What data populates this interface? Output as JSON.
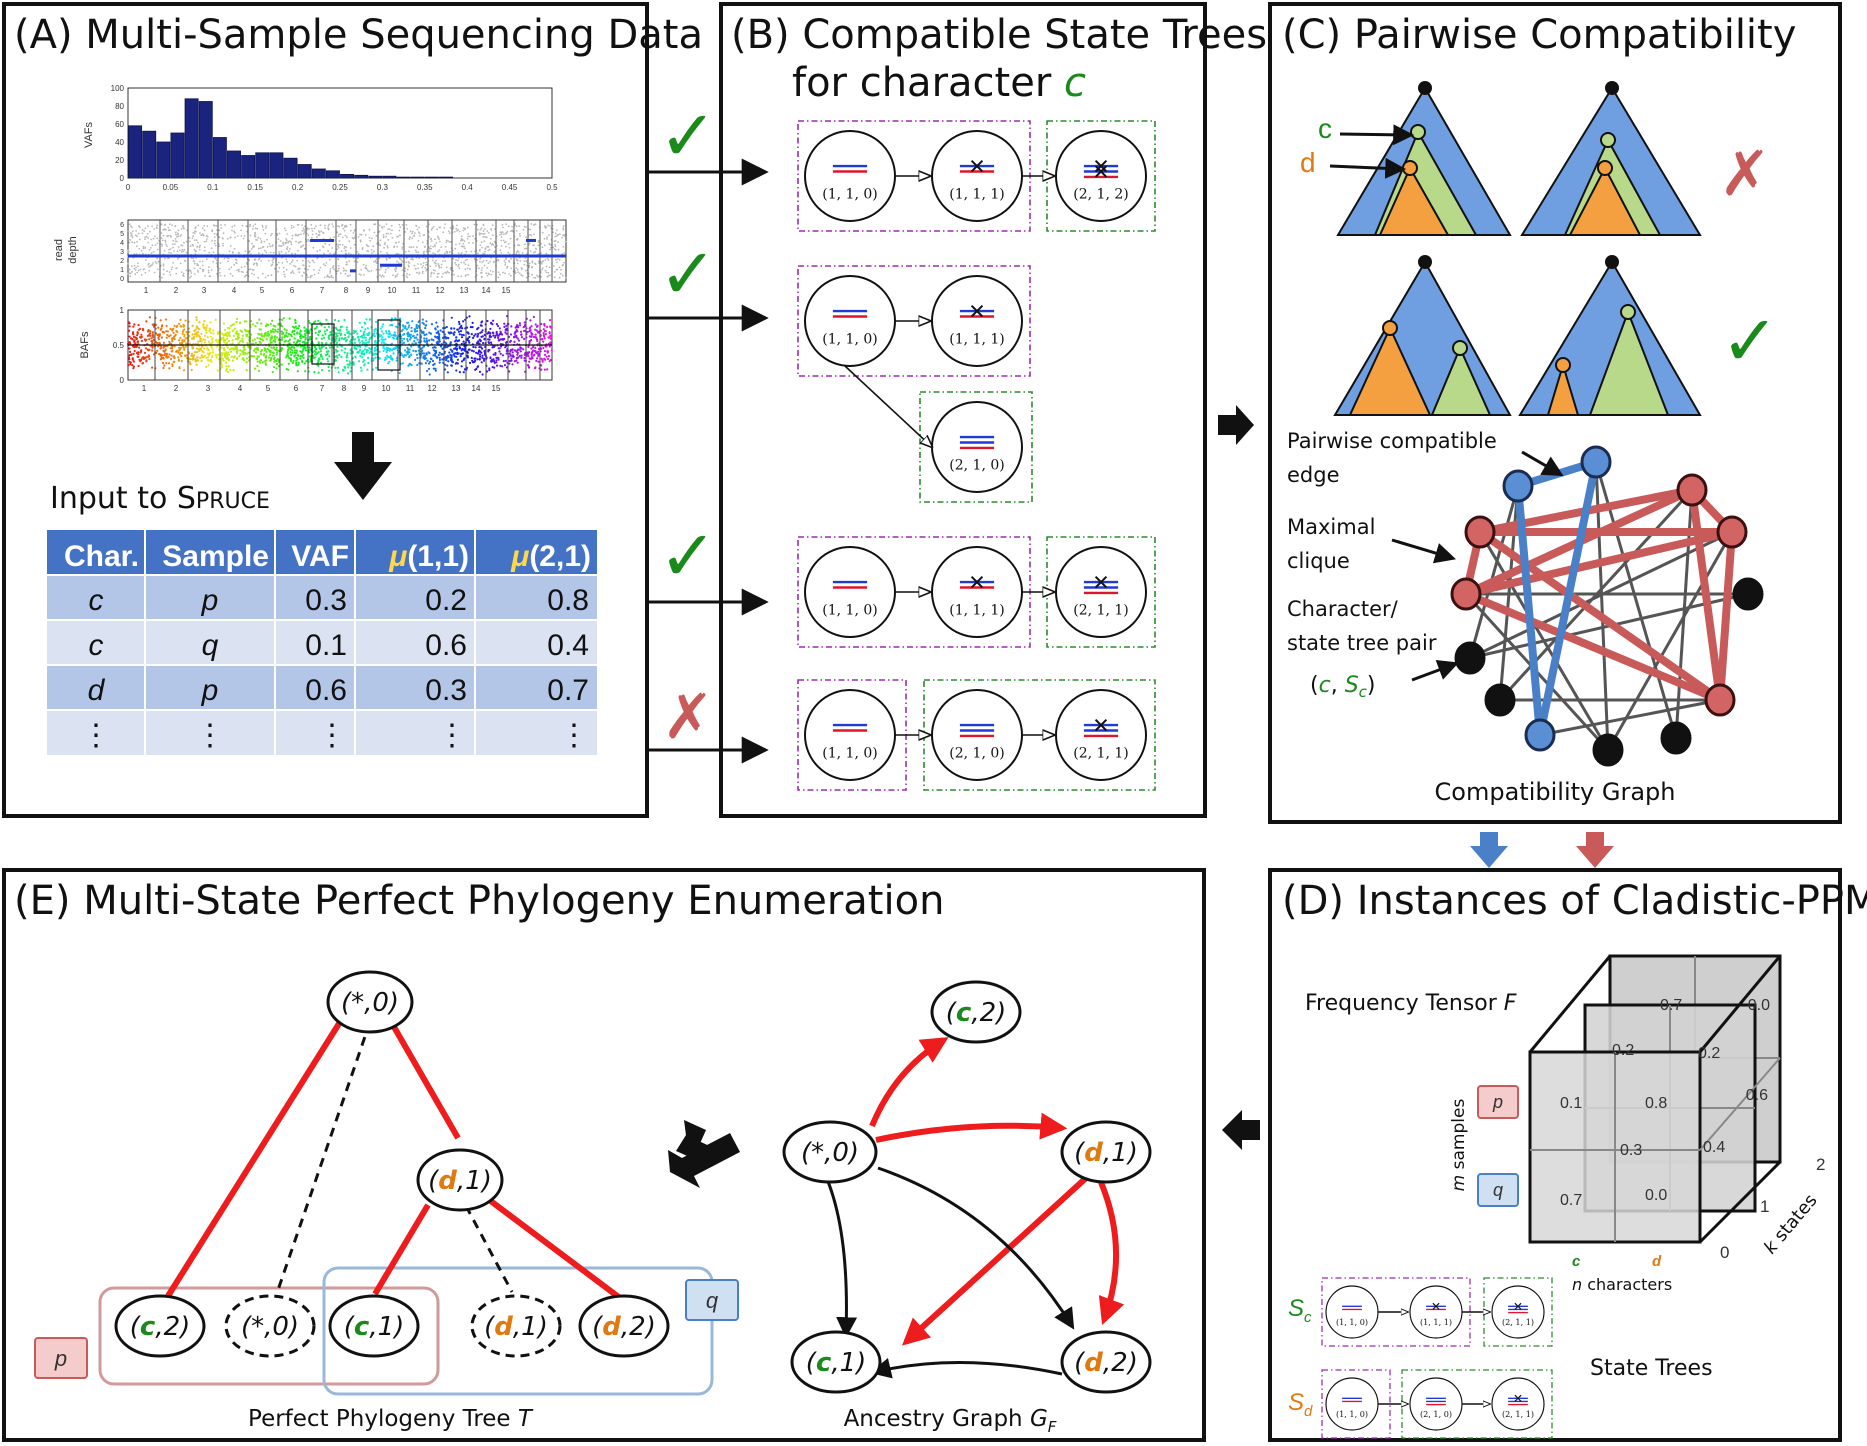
{
  "panels": {
    "a": {
      "title": "(A)  Multi-Sample Sequencing Data"
    },
    "b": {
      "title_line1": "(B)  Compatible State Trees",
      "title_line2": "for character",
      "title_char": "c"
    },
    "c": {
      "title": "(C)  Pairwise Compatibility"
    },
    "d": {
      "title": "(D)  Instances of Cladistic-PPMDP"
    },
    "e": {
      "title": "(E)  Multi-State Perfect Phylogeny Enumeration"
    }
  },
  "panel_a": {
    "vaf_plot": {
      "ylabel": "VAFs",
      "yticks": [
        "100",
        "80",
        "60",
        "40",
        "20",
        "0"
      ],
      "xticks": [
        "0",
        "0.05",
        "0.1",
        "0.15",
        "0.2",
        "0.25",
        "0.3",
        "0.35",
        "0.4",
        "0.45",
        "0.5"
      ],
      "bars": [
        58,
        52,
        40,
        50,
        88,
        85,
        45,
        30,
        25,
        28,
        28,
        22,
        15,
        10,
        8,
        4,
        3,
        2,
        2,
        1,
        1,
        1,
        1,
        0,
        0,
        0,
        0,
        0,
        0,
        0
      ]
    },
    "depth_plot": {
      "ylabel_line1": "read",
      "ylabel_line2": "depth",
      "yticks": [
        "6",
        "5",
        "4",
        "3",
        "2",
        "1",
        "0"
      ],
      "xticks": [
        "1",
        "2",
        "3",
        "4",
        "5",
        "6",
        "7",
        "8",
        "9",
        "10",
        "11",
        "12",
        "13",
        "14",
        "15"
      ]
    },
    "baf_plot": {
      "ylabel": "BAFs",
      "yticks": [
        "1",
        "0.5",
        "0"
      ],
      "xticks": [
        "1",
        "2",
        "3",
        "4",
        "5",
        "6",
        "7",
        "8",
        "9",
        "10",
        "11",
        "12",
        "13",
        "14",
        "15"
      ]
    },
    "input_label_prefix": "Input to S",
    "input_label_suffix": "PRUCE",
    "table": {
      "headers": [
        "Char.",
        "Sample",
        "VAF",
        "μ(1,1)",
        "μ(2,1)"
      ],
      "rows": [
        [
          "c",
          "p",
          "0.3",
          "0.2",
          "0.8"
        ],
        [
          "c",
          "q",
          "0.1",
          "0.6",
          "0.4"
        ],
        [
          "d",
          "p",
          "0.6",
          "0.3",
          "0.7"
        ],
        [
          "⋮",
          "⋮",
          "⋮",
          "⋮",
          "⋮"
        ]
      ]
    }
  },
  "panel_b": {
    "marks": [
      "✓",
      "✓",
      "✓",
      "✗"
    ],
    "states": {
      "s110": "(1, 1, 0)",
      "s111": "(1, 1, 1)",
      "s212": "(2, 1, 2)",
      "s210": "(2, 1, 0)",
      "s211": "(2, 1, 1)"
    }
  },
  "panel_c": {
    "char_c": "c",
    "char_d": "d",
    "mark_bad": "✗",
    "mark_good": "✓",
    "label_edge_line1": "Pairwise   compatible",
    "label_edge_line2": "edge",
    "label_clique_line1": "Maximal",
    "label_clique_line2": "clique",
    "label_pair_line1": "Character/",
    "label_pair_line2": "state tree pair",
    "label_pair_c": "c",
    "label_pair_S": "S",
    "label_pair_sub": "c",
    "graph_caption": "Compatibility Graph"
  },
  "panel_d": {
    "tensor_label": "Frequency   Tensor",
    "tensor_var": "F",
    "samples_m": "m",
    "samples_label": "samples",
    "sample_p": "p",
    "sample_q": "q",
    "front_values": [
      "0.1",
      "0.8",
      "0.7",
      "0.0"
    ],
    "middle_values": [
      "0.2",
      "0.4",
      "0.3"
    ],
    "back_values": [
      "0.7",
      "0.0",
      "0.2",
      "0.6"
    ],
    "state_ticks": [
      "0",
      "1",
      "2"
    ],
    "k_label": "k",
    "states_label": "states",
    "char_c": "c",
    "char_d": "d",
    "n_label": "n",
    "characters_label": "characters",
    "Sc_label": "S",
    "Sc_sub": "c",
    "Sd_label": "S",
    "Sd_sub": "d",
    "state_trees_label": "State   Trees",
    "states": {
      "s110": "(1, 1, 0)",
      "s111": "(1, 1, 1)",
      "s211": "(2, 1, 1)",
      "s210": "(2, 1, 0)"
    }
  },
  "panel_e": {
    "tree_nodes": {
      "root": {
        "open": "(",
        "a": "*",
        "b": ",0)"
      },
      "d1": {
        "open": "(",
        "a": "d",
        "b": ",1)"
      },
      "c2": {
        "open": "(",
        "a": "c",
        "b": ",2)"
      },
      "s0": {
        "open": "(",
        "a": "*",
        "b": ",0)"
      },
      "c1": {
        "open": "(",
        "a": "c",
        "b": ",1)"
      },
      "d1b": {
        "open": "(",
        "a": "d",
        "b": ",1)"
      },
      "d2": {
        "open": "(",
        "a": "d",
        "b": ",2)"
      }
    },
    "sample_p": "p",
    "sample_q": "q",
    "tree_caption": "Perfect   Phylogeny Tree",
    "tree_var": "T",
    "graph_nodes": {
      "c2": {
        "open": "(",
        "a": "c",
        "b": ",2)"
      },
      "root": {
        "open": "(",
        "a": "*",
        "b": ",0)"
      },
      "d1": {
        "open": "(",
        "a": "d",
        "b": ",1)"
      },
      "c1": {
        "open": "(",
        "a": "c",
        "b": ",1)"
      },
      "d2": {
        "open": "(",
        "a": "d",
        "b": ",2)"
      }
    },
    "graph_caption": "Ancestry   Graph",
    "graph_var": "G",
    "graph_sub": "F"
  },
  "colors": {
    "green": "#1a8a1a",
    "orange": "#e07a10",
    "red_edge": "#ee1c1c",
    "clique_red": "#c85a5a",
    "blue_edge": "#4a80c8",
    "tri_blue": "#6f9fe0",
    "tri_green": "#b8d98a",
    "tri_orange": "#f5a040",
    "table_header": "#4472c4",
    "table_dark": "#b4c6e7",
    "table_light": "#dbe3f3"
  }
}
